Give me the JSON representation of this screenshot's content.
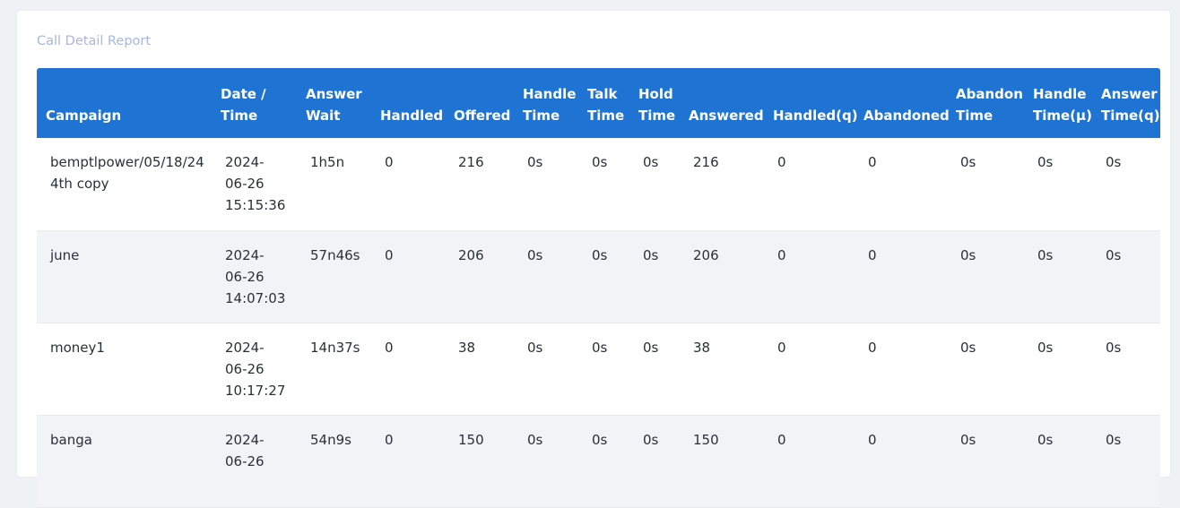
{
  "report": {
    "title": "Call Detail Report",
    "columns": [
      {
        "line1": "",
        "line2": "Campaign"
      },
      {
        "line1": "Date /",
        "line2": "Time"
      },
      {
        "line1": "Answer",
        "line2": "Wait"
      },
      {
        "line1": "",
        "line2": "Handled"
      },
      {
        "line1": "",
        "line2": "Offered"
      },
      {
        "line1": "Handle",
        "line2": "Time"
      },
      {
        "line1": "Talk",
        "line2": "Time"
      },
      {
        "line1": "Hold",
        "line2": "Time"
      },
      {
        "line1": "",
        "line2": "Answered"
      },
      {
        "line1": "",
        "line2": "Handled(q)"
      },
      {
        "line1": "",
        "line2": "Abandoned"
      },
      {
        "line1": "Abandon",
        "line2": "Time"
      },
      {
        "line1": "Handle",
        "line2": "Time(μ)"
      },
      {
        "line1": "Answer",
        "line2": "Time(q)"
      }
    ],
    "rows": [
      {
        "campaign": "bemptlpower/05/18/24 4th copy",
        "date": "2024-",
        "date2": "06-26",
        "time": "15:15:36",
        "answer_wait": "1h5n",
        "handled": "0",
        "offered": "216",
        "handle_time": "0s",
        "talk_time": "0s",
        "hold_time": "0s",
        "answered": "216",
        "handled_q": "0",
        "abandoned": "0",
        "abandon_time": "0s",
        "handle_time_mu": "0s",
        "answer_time_q": "0s"
      },
      {
        "campaign": "june",
        "date": "2024-",
        "date2": "06-26",
        "time": "14:07:03",
        "answer_wait": "57n46s",
        "handled": "0",
        "offered": "206",
        "handle_time": "0s",
        "talk_time": "0s",
        "hold_time": "0s",
        "answered": "206",
        "handled_q": "0",
        "abandoned": "0",
        "abandon_time": "0s",
        "handle_time_mu": "0s",
        "answer_time_q": "0s"
      },
      {
        "campaign": "money1",
        "date": "2024-",
        "date2": "06-26",
        "time": "10:17:27",
        "answer_wait": "14n37s",
        "handled": "0",
        "offered": "38",
        "handle_time": "0s",
        "talk_time": "0s",
        "hold_time": "0s",
        "answered": "38",
        "handled_q": "0",
        "abandoned": "0",
        "abandon_time": "0s",
        "handle_time_mu": "0s",
        "answer_time_q": "0s"
      },
      {
        "campaign": "banga",
        "date": "2024-",
        "date2": "06-26",
        "time": "",
        "answer_wait": "54n9s",
        "handled": "0",
        "offered": "150",
        "handle_time": "0s",
        "talk_time": "0s",
        "hold_time": "0s",
        "answered": "150",
        "handled_q": "0",
        "abandoned": "0",
        "abandon_time": "0s",
        "handle_time_mu": "0s",
        "answer_time_q": "0s"
      }
    ]
  }
}
